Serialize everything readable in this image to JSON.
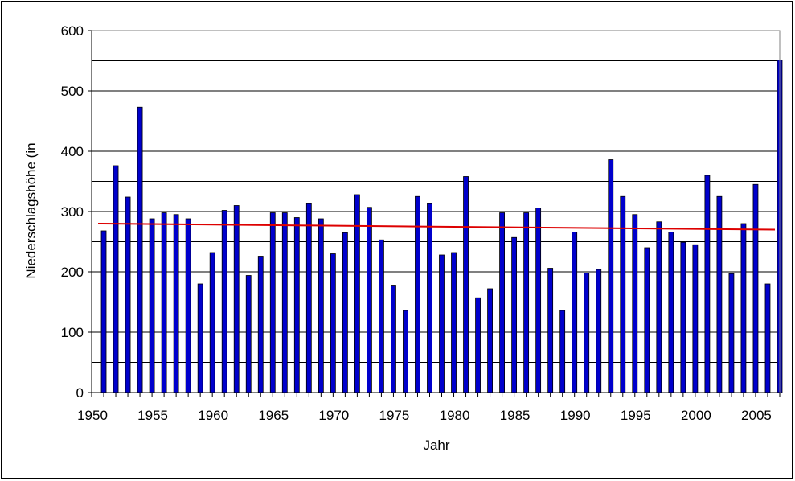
{
  "chart_data": {
    "type": "bar",
    "title": "",
    "xlabel": "Jahr",
    "ylabel": "Niederschlagshöhe (in",
    "ylim": [
      0,
      600
    ],
    "y_ticks": [
      "0",
      "100",
      "200",
      "300",
      "400",
      "500",
      "600"
    ],
    "x_range": [
      1950,
      2007
    ],
    "x_ticks": [
      "1950",
      "1955",
      "1960",
      "1965",
      "1970",
      "1975",
      "1980",
      "1985",
      "1990",
      "1995",
      "2000",
      "2005"
    ],
    "grid": "horizontal",
    "bar_color": "#0000cc",
    "trend_color": "#dd0000",
    "x": [
      1951,
      1952,
      1953,
      1954,
      1955,
      1956,
      1957,
      1958,
      1959,
      1960,
      1961,
      1962,
      1963,
      1964,
      1965,
      1966,
      1967,
      1968,
      1969,
      1970,
      1971,
      1972,
      1973,
      1974,
      1975,
      1976,
      1977,
      1978,
      1979,
      1980,
      1981,
      1982,
      1983,
      1984,
      1985,
      1986,
      1987,
      1988,
      1989,
      1990,
      1991,
      1992,
      1993,
      1994,
      1995,
      1996,
      1997,
      1998,
      1999,
      2000,
      2001,
      2002,
      2003,
      2004,
      2005,
      2006,
      2007
    ],
    "values": [
      268,
      376,
      324,
      473,
      288,
      298,
      295,
      288,
      180,
      232,
      302,
      310,
      194,
      226,
      298,
      298,
      290,
      313,
      288,
      230,
      265,
      328,
      307,
      253,
      178,
      136,
      325,
      313,
      228,
      232,
      358,
      157,
      172,
      298,
      257,
      298,
      306,
      206,
      136,
      266,
      198,
      204,
      386,
      325,
      295,
      240,
      283,
      266,
      249,
      245,
      360,
      325,
      197,
      280,
      345,
      180,
      551
    ],
    "trend": {
      "start": [
        1950,
        280
      ],
      "end": [
        2007,
        270
      ]
    }
  }
}
